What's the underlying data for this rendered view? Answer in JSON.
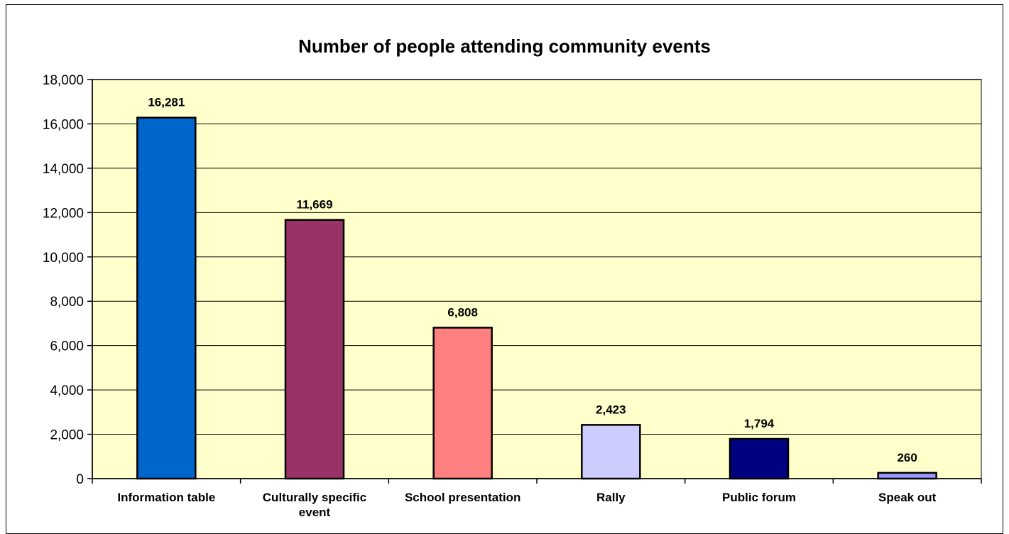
{
  "chart_data": {
    "type": "bar",
    "title": "Number of people attending community events",
    "categories": [
      "Information table",
      "Culturally specific event",
      "School presentation",
      "Rally",
      "Public forum",
      "Speak out"
    ],
    "category_lines": [
      [
        "Information table"
      ],
      [
        "Culturally specific",
        "event"
      ],
      [
        "School presentation"
      ],
      [
        "Rally"
      ],
      [
        "Public forum"
      ],
      [
        "Speak out"
      ]
    ],
    "values": [
      16281,
      11669,
      6808,
      2423,
      1794,
      260
    ],
    "value_labels": [
      "16,281",
      "11,669",
      "6,808",
      "2,423",
      "1,794",
      "260"
    ],
    "bar_colors": [
      "#0066cc",
      "#993366",
      "#ff8080",
      "#ccccff",
      "#000080",
      "#9999ff"
    ],
    "ylim": [
      0,
      18000
    ],
    "yticks": [
      0,
      2000,
      4000,
      6000,
      8000,
      10000,
      12000,
      14000,
      16000,
      18000
    ],
    "ytick_labels": [
      "0",
      "2,000",
      "4,000",
      "6,000",
      "8,000",
      "10,000",
      "12,000",
      "14,000",
      "16,000",
      "18,000"
    ],
    "grid": true,
    "plot_background": "#ffffcc",
    "xlabel": "",
    "ylabel": ""
  }
}
